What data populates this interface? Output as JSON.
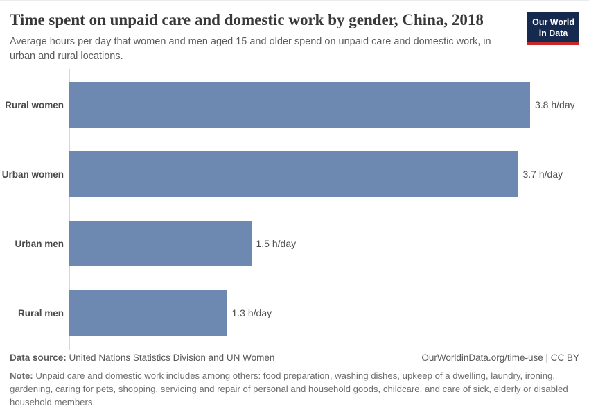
{
  "header": {
    "title": "Time spent on unpaid care and domestic work by gender, China, 2018",
    "subtitle": "Average hours per day that women and men aged 15 and older spend on unpaid care and domestic work, in urban and rural locations.",
    "logo": {
      "line1": "Our World",
      "line2": "in Data"
    }
  },
  "chart_data": {
    "type": "bar",
    "orientation": "horizontal",
    "title": "Time spent on unpaid care and domestic work by gender, China, 2018",
    "categories": [
      "Rural women",
      "Urban women",
      "Urban men",
      "Rural men"
    ],
    "values": [
      3.8,
      3.7,
      1.5,
      1.3
    ],
    "value_labels": [
      "3.8 h/day",
      "3.7 h/day",
      "1.5 h/day",
      "1.3 h/day"
    ],
    "unit": "h/day",
    "xlabel": "",
    "ylabel": "",
    "xlim": [
      0,
      3.8
    ],
    "grid": false,
    "legend": false
  },
  "footer": {
    "source_label": "Data source:",
    "source_value": "United Nations Statistics Division and UN Women",
    "attribution": "OurWorldinData.org/time-use | CC BY",
    "note_label": "Note:",
    "note_value": "Unpaid care and domestic work includes among others: food preparation, washing dishes, upkeep of a dwelling, laundry, ironing, gardening, caring for pets, shopping, servicing and repair of personal and household goods, childcare, and care of sick, elderly or disabled household members."
  },
  "colors": {
    "bar": "#6e89b1",
    "logo_background": "#16294f",
    "logo_red_strip": "#c5292a",
    "axis_line": "#d6d6d6"
  }
}
